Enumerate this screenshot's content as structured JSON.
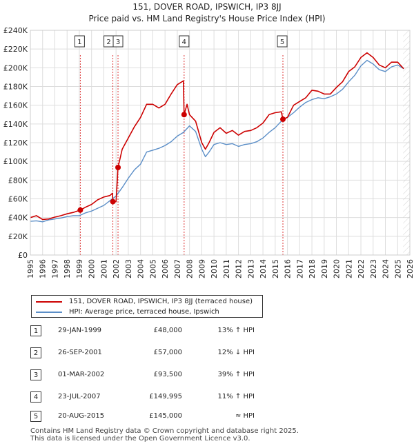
{
  "chart_data": {
    "type": "line",
    "title_line1": "151, DOVER ROAD, IPSWICH, IP3 8JJ",
    "title_line2": "Price paid vs. HM Land Registry's House Price Index (HPI)",
    "xlabel": "",
    "ylabel": "",
    "xlim": [
      1995,
      2026
    ],
    "ylim": [
      0,
      240000
    ],
    "x_ticks": [
      "1995",
      "1996",
      "1997",
      "1998",
      "1999",
      "2000",
      "2001",
      "2002",
      "2003",
      "2004",
      "2005",
      "2006",
      "2007",
      "2008",
      "2009",
      "2010",
      "2011",
      "2012",
      "2013",
      "2014",
      "2015",
      "2016",
      "2017",
      "2018",
      "2019",
      "2020",
      "2021",
      "2022",
      "2023",
      "2024",
      "2025",
      "2026"
    ],
    "y_ticks": [
      {
        "value": 0,
        "label": "£0"
      },
      {
        "value": 20000,
        "label": "£20K"
      },
      {
        "value": 40000,
        "label": "£40K"
      },
      {
        "value": 60000,
        "label": "£60K"
      },
      {
        "value": 80000,
        "label": "£80K"
      },
      {
        "value": 100000,
        "label": "£100K"
      },
      {
        "value": 120000,
        "label": "£120K"
      },
      {
        "value": 140000,
        "label": "£140K"
      },
      {
        "value": 160000,
        "label": "£160K"
      },
      {
        "value": 180000,
        "label": "£180K"
      },
      {
        "value": 200000,
        "label": "£200K"
      },
      {
        "value": 220000,
        "label": "£220K"
      },
      {
        "value": 240000,
        "label": "£240K"
      }
    ],
    "series": [
      {
        "name": "151, DOVER ROAD, IPSWICH, IP3 8JJ (terraced house)",
        "color": "#cc0000",
        "points": [
          [
            1995.0,
            40000
          ],
          [
            1995.5,
            42000
          ],
          [
            1996.0,
            38000
          ],
          [
            1996.5,
            38500
          ],
          [
            1997.0,
            40500
          ],
          [
            1997.5,
            42000
          ],
          [
            1998.0,
            44000
          ],
          [
            1998.5,
            45500
          ],
          [
            1999.08,
            48000
          ],
          [
            1999.5,
            51000
          ],
          [
            2000.0,
            54000
          ],
          [
            2000.5,
            59000
          ],
          [
            2001.0,
            62000
          ],
          [
            2001.5,
            63500
          ],
          [
            2001.7,
            66000
          ],
          [
            2001.74,
            57000
          ],
          [
            2002.0,
            57000
          ],
          [
            2002.16,
            93500
          ],
          [
            2002.5,
            113000
          ],
          [
            2003.0,
            125000
          ],
          [
            2003.5,
            137000
          ],
          [
            2004.0,
            147000
          ],
          [
            2004.5,
            161000
          ],
          [
            2005.0,
            161000
          ],
          [
            2005.5,
            157000
          ],
          [
            2006.0,
            161000
          ],
          [
            2006.5,
            172000
          ],
          [
            2007.0,
            182000
          ],
          [
            2007.5,
            186000
          ],
          [
            2007.56,
            149995
          ],
          [
            2007.8,
            161000
          ],
          [
            2008.0,
            150000
          ],
          [
            2008.5,
            143000
          ],
          [
            2009.0,
            120000
          ],
          [
            2009.3,
            113000
          ],
          [
            2009.6,
            120000
          ],
          [
            2010.0,
            131000
          ],
          [
            2010.5,
            136000
          ],
          [
            2011.0,
            130000
          ],
          [
            2011.5,
            133000
          ],
          [
            2012.0,
            128000
          ],
          [
            2012.5,
            132000
          ],
          [
            2013.0,
            133000
          ],
          [
            2013.5,
            136000
          ],
          [
            2014.0,
            141000
          ],
          [
            2014.5,
            150000
          ],
          [
            2015.0,
            152000
          ],
          [
            2015.5,
            153000
          ],
          [
            2015.63,
            145000
          ],
          [
            2016.0,
            147000
          ],
          [
            2016.5,
            160000
          ],
          [
            2017.0,
            164000
          ],
          [
            2017.5,
            168000
          ],
          [
            2018.0,
            176000
          ],
          [
            2018.5,
            175000
          ],
          [
            2019.0,
            172000
          ],
          [
            2019.5,
            172000
          ],
          [
            2020.0,
            179000
          ],
          [
            2020.5,
            185000
          ],
          [
            2021.0,
            196000
          ],
          [
            2021.5,
            201000
          ],
          [
            2022.0,
            211000
          ],
          [
            2022.5,
            216000
          ],
          [
            2023.0,
            211000
          ],
          [
            2023.5,
            203000
          ],
          [
            2024.0,
            200000
          ],
          [
            2024.5,
            206000
          ],
          [
            2025.0,
            206000
          ],
          [
            2025.5,
            199000
          ]
        ]
      },
      {
        "name": "HPI: Average price, terraced house, Ipswich",
        "color": "#5b8ec7",
        "points": [
          [
            1995.0,
            36000
          ],
          [
            1995.5,
            36500
          ],
          [
            1996.0,
            35500
          ],
          [
            1996.5,
            37500
          ],
          [
            1997.0,
            38500
          ],
          [
            1997.5,
            39500
          ],
          [
            1998.0,
            41000
          ],
          [
            1998.5,
            42000
          ],
          [
            1999.0,
            42000
          ],
          [
            1999.5,
            45000
          ],
          [
            2000.0,
            47000
          ],
          [
            2000.5,
            50000
          ],
          [
            2001.0,
            53000
          ],
          [
            2001.5,
            58000
          ],
          [
            2002.0,
            63000
          ],
          [
            2002.5,
            72000
          ],
          [
            2003.0,
            82000
          ],
          [
            2003.5,
            91000
          ],
          [
            2004.0,
            97000
          ],
          [
            2004.5,
            110000
          ],
          [
            2005.0,
            112000
          ],
          [
            2005.5,
            114000
          ],
          [
            2006.0,
            117000
          ],
          [
            2006.5,
            121000
          ],
          [
            2007.0,
            127000
          ],
          [
            2007.5,
            131000
          ],
          [
            2008.0,
            138000
          ],
          [
            2008.5,
            132000
          ],
          [
            2009.0,
            113000
          ],
          [
            2009.3,
            105000
          ],
          [
            2009.6,
            110000
          ],
          [
            2010.0,
            118000
          ],
          [
            2010.5,
            120000
          ],
          [
            2011.0,
            118000
          ],
          [
            2011.5,
            119000
          ],
          [
            2012.0,
            116000
          ],
          [
            2012.5,
            118000
          ],
          [
            2013.0,
            119000
          ],
          [
            2013.5,
            121000
          ],
          [
            2014.0,
            125000
          ],
          [
            2014.5,
            131000
          ],
          [
            2015.0,
            136000
          ],
          [
            2015.5,
            143000
          ],
          [
            2016.0,
            147000
          ],
          [
            2016.5,
            152000
          ],
          [
            2017.0,
            158000
          ],
          [
            2017.5,
            163000
          ],
          [
            2018.0,
            166000
          ],
          [
            2018.5,
            168000
          ],
          [
            2019.0,
            167000
          ],
          [
            2019.5,
            169000
          ],
          [
            2020.0,
            172000
          ],
          [
            2020.5,
            177000
          ],
          [
            2021.0,
            185000
          ],
          [
            2021.5,
            192000
          ],
          [
            2022.0,
            202000
          ],
          [
            2022.5,
            208000
          ],
          [
            2023.0,
            204000
          ],
          [
            2023.5,
            198000
          ],
          [
            2024.0,
            196000
          ],
          [
            2024.5,
            201000
          ],
          [
            2025.0,
            203000
          ],
          [
            2025.5,
            199000
          ]
        ]
      }
    ],
    "sale_markers": [
      {
        "id": "1",
        "x": 1999.08,
        "y": 48000
      },
      {
        "id": "2",
        "x": 2001.74,
        "y": 57000
      },
      {
        "id": "3",
        "x": 2002.16,
        "y": 93500
      },
      {
        "id": "4",
        "x": 2007.56,
        "y": 149995
      },
      {
        "id": "5",
        "x": 2015.63,
        "y": 145000
      }
    ],
    "legend": [
      {
        "label": "151, DOVER ROAD, IPSWICH, IP3 8JJ (terraced house)",
        "color": "#cc0000"
      },
      {
        "label": "HPI: Average price, terraced house, Ipswich",
        "color": "#5b8ec7"
      }
    ]
  },
  "sales": [
    {
      "num": "1",
      "date": "29-JAN-1999",
      "price": "£48,000",
      "hpi": "13% ↑ HPI"
    },
    {
      "num": "2",
      "date": "26-SEP-2001",
      "price": "£57,000",
      "hpi": "12% ↓ HPI"
    },
    {
      "num": "3",
      "date": "01-MAR-2002",
      "price": "£93,500",
      "hpi": "39% ↑ HPI"
    },
    {
      "num": "4",
      "date": "23-JUL-2007",
      "price": "£149,995",
      "hpi": "11% ↑ HPI"
    },
    {
      "num": "5",
      "date": "20-AUG-2015",
      "price": "£145,000",
      "hpi": "≈ HPI"
    }
  ],
  "footer": {
    "line1": "Contains HM Land Registry data © Crown copyright and database right 2025.",
    "line2": "This data is licensed under the Open Government Licence v3.0."
  },
  "colors": {
    "background": "#ffffff",
    "plot_bg": "#ffffff",
    "grid": "#dddddd",
    "future_hatch": "#e6e6e6"
  }
}
